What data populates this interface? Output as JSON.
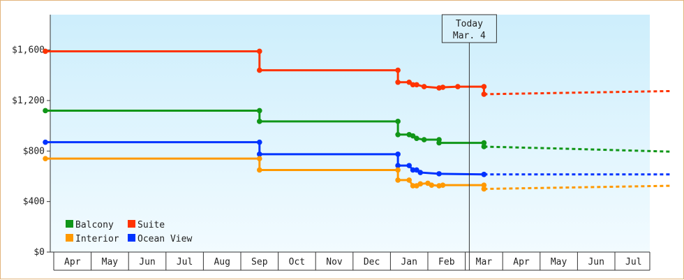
{
  "chart_data": {
    "type": "line",
    "step": true,
    "y_ticks": [
      "$0",
      "$400",
      "$800",
      "$1,200",
      "$1,600"
    ],
    "y_tick_values": [
      0,
      400,
      800,
      1200,
      1600
    ],
    "ylim": [
      0,
      1880
    ],
    "month_labels": [
      "Apr",
      "May",
      "Jun",
      "Jul",
      "Aug",
      "Sep",
      "Oct",
      "Nov",
      "Dec",
      "Jan",
      "Feb",
      "Mar",
      "Apr",
      "May",
      "Jun",
      "Jul"
    ],
    "today_index": 11,
    "today": {
      "line1": "Today",
      "line2": "Mar. 4"
    },
    "legend": [
      {
        "label": "Balcony",
        "color": "#109618"
      },
      {
        "label": "Suite",
        "color": "#ff3300"
      },
      {
        "label": "Interior",
        "color": "#ff9900"
      },
      {
        "label": "Ocean View",
        "color": "#0033ff"
      }
    ],
    "series": [
      {
        "name": "Suite",
        "color": "#ff3300",
        "points": [
          [
            -0.2,
            1590
          ],
          [
            5.0,
            1590
          ],
          [
            5.0,
            1440
          ],
          [
            8.7,
            1440
          ],
          [
            8.7,
            1345
          ],
          [
            9.0,
            1345
          ],
          [
            9.1,
            1325
          ],
          [
            9.2,
            1325
          ],
          [
            9.4,
            1310
          ],
          [
            9.8,
            1300
          ],
          [
            9.9,
            1305
          ],
          [
            10.3,
            1310
          ],
          [
            11.0,
            1310
          ],
          [
            11.0,
            1250
          ]
        ],
        "forecast": [
          [
            11.0,
            1250
          ],
          [
            13.0,
            1260
          ],
          [
            16.0,
            1275
          ]
        ]
      },
      {
        "name": "Balcony",
        "color": "#109618",
        "points": [
          [
            -0.2,
            1120
          ],
          [
            5.0,
            1120
          ],
          [
            5.0,
            1035
          ],
          [
            8.7,
            1035
          ],
          [
            8.7,
            930
          ],
          [
            9.0,
            930
          ],
          [
            9.1,
            920
          ],
          [
            9.2,
            900
          ],
          [
            9.4,
            890
          ],
          [
            9.8,
            890
          ],
          [
            9.8,
            865
          ],
          [
            11.0,
            865
          ],
          [
            11.0,
            835
          ]
        ],
        "forecast": [
          [
            11.0,
            835
          ],
          [
            13.0,
            820
          ],
          [
            16.0,
            795
          ]
        ]
      },
      {
        "name": "Ocean View",
        "color": "#0033ff",
        "points": [
          [
            -0.2,
            870
          ],
          [
            5.0,
            870
          ],
          [
            5.0,
            775
          ],
          [
            8.7,
            775
          ],
          [
            8.7,
            685
          ],
          [
            9.0,
            685
          ],
          [
            9.1,
            650
          ],
          [
            9.2,
            650
          ],
          [
            9.3,
            630
          ],
          [
            9.8,
            620
          ],
          [
            11.0,
            615
          ],
          [
            11.0,
            615
          ]
        ],
        "forecast": [
          [
            11.0,
            615
          ],
          [
            13.0,
            615
          ],
          [
            16.0,
            615
          ]
        ]
      },
      {
        "name": "Interior",
        "color": "#ff9900",
        "points": [
          [
            -0.2,
            740
          ],
          [
            5.0,
            740
          ],
          [
            5.0,
            650
          ],
          [
            8.7,
            650
          ],
          [
            8.7,
            570
          ],
          [
            9.0,
            570
          ],
          [
            9.1,
            525
          ],
          [
            9.2,
            525
          ],
          [
            9.3,
            540
          ],
          [
            9.5,
            545
          ],
          [
            9.6,
            530
          ],
          [
            9.8,
            525
          ],
          [
            9.9,
            530
          ],
          [
            11.0,
            530
          ],
          [
            11.0,
            500
          ]
        ],
        "forecast": [
          [
            11.0,
            500
          ],
          [
            13.0,
            510
          ],
          [
            16.0,
            525
          ]
        ]
      }
    ]
  }
}
